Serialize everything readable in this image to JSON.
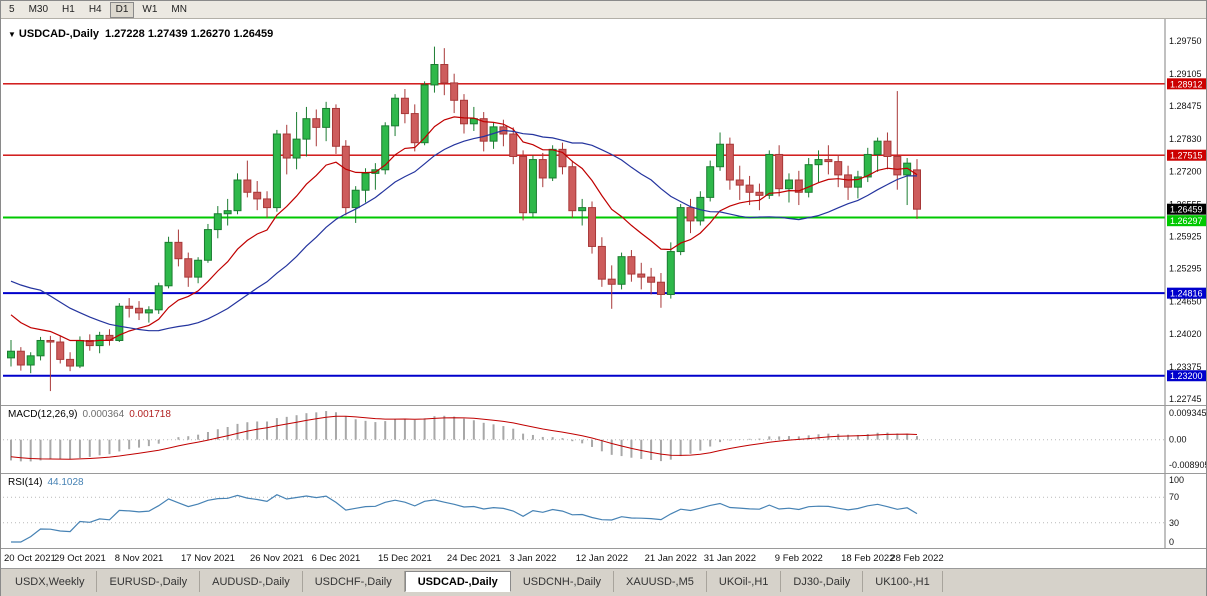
{
  "toolbar": {
    "timeframes": [
      {
        "label": "5",
        "active": false
      },
      {
        "label": "M30",
        "active": false
      },
      {
        "label": "H1",
        "active": false
      },
      {
        "label": "H4",
        "active": false
      },
      {
        "label": "D1",
        "active": true
      },
      {
        "label": "W1",
        "active": false
      },
      {
        "label": "MN",
        "active": false
      }
    ]
  },
  "chart_data": {
    "type": "candlestick+indicators",
    "collapse_icon": "▼",
    "symbol_title": "USDCAD-,Daily",
    "ohlc_display": "1.27228 1.27439 1.26270 1.26459",
    "price_axis_labels": [
      "1.29750",
      "1.29105",
      "1.28475",
      "1.27830",
      "1.27200",
      "1.26555",
      "1.25925",
      "1.25295",
      "1.24650",
      "1.24020",
      "1.23375",
      "1.22745"
    ],
    "price_axis_range": {
      "top": 1.2975,
      "bottom": 1.22745
    },
    "hlines": [
      {
        "price": 1.28912,
        "label": "1.28912",
        "color": "#CC0000",
        "width": 1.4
      },
      {
        "price": 1.27515,
        "label": "1.27515",
        "color": "#CC0000",
        "width": 1.4
      },
      {
        "price": 1.26297,
        "label": "1.26297",
        "color": "#00C800",
        "width": 2
      },
      {
        "price": 1.24816,
        "label": "1.24816",
        "color": "#0000CC",
        "width": 2
      },
      {
        "price": 1.232,
        "label": "1.23200",
        "color": "#0000CC",
        "width": 2
      }
    ],
    "current_price_tag": {
      "price": 1.26459,
      "label": "1.26459",
      "color": "#000000"
    },
    "moving_averages": [
      {
        "name": "fast-ma",
        "type": "ema",
        "period": 12,
        "color": "#C00000"
      },
      {
        "name": "slow-ma",
        "type": "sma",
        "period": 24,
        "color": "#24349E"
      }
    ],
    "ma_seed": [
      1.2656,
      1.2641,
      1.2622,
      1.2603,
      1.2586,
      1.2571,
      1.2556,
      1.2541,
      1.2531,
      1.2519,
      1.2506,
      1.2491,
      1.2476,
      1.2461,
      1.2449,
      1.2436,
      1.2421,
      1.2406,
      1.2391,
      1.2376
    ],
    "candles": [
      [
        1.2355,
        1.239,
        1.2338,
        1.2368
      ],
      [
        1.2368,
        1.2376,
        1.233,
        1.2341
      ],
      [
        1.2341,
        1.2366,
        1.2325,
        1.2359
      ],
      [
        1.2359,
        1.2396,
        1.235,
        1.2389
      ],
      [
        1.2389,
        1.2398,
        1.229,
        1.2386
      ],
      [
        1.2386,
        1.2399,
        1.2344,
        1.2352
      ],
      [
        1.2352,
        1.2366,
        1.2329,
        1.2339
      ],
      [
        1.2339,
        1.2397,
        1.2335,
        1.2389
      ],
      [
        1.2389,
        1.2401,
        1.2369,
        1.2379
      ],
      [
        1.2379,
        1.2406,
        1.2364,
        1.2399
      ],
      [
        1.2399,
        1.2411,
        1.2379,
        1.2389
      ],
      [
        1.2389,
        1.2462,
        1.2386,
        1.2456
      ],
      [
        1.2456,
        1.2472,
        1.2434,
        1.2452
      ],
      [
        1.2452,
        1.2466,
        1.2429,
        1.2443
      ],
      [
        1.2443,
        1.2456,
        1.2424,
        1.2449
      ],
      [
        1.2449,
        1.2502,
        1.2441,
        1.2496
      ],
      [
        1.2496,
        1.2592,
        1.2491,
        1.2581
      ],
      [
        1.2581,
        1.2606,
        1.2534,
        1.2549
      ],
      [
        1.2549,
        1.2561,
        1.2494,
        1.2513
      ],
      [
        1.2513,
        1.2552,
        1.2501,
        1.2546
      ],
      [
        1.2546,
        1.2617,
        1.2541,
        1.2606
      ],
      [
        1.2606,
        1.2652,
        1.2589,
        1.2637
      ],
      [
        1.2637,
        1.2666,
        1.2614,
        1.2643
      ],
      [
        1.2643,
        1.2716,
        1.2636,
        1.2703
      ],
      [
        1.2703,
        1.2741,
        1.2669,
        1.2679
      ],
      [
        1.2679,
        1.2701,
        1.2644,
        1.2666
      ],
      [
        1.2666,
        1.2681,
        1.2629,
        1.2649
      ],
      [
        1.2649,
        1.2801,
        1.2641,
        1.2793
      ],
      [
        1.2793,
        1.2811,
        1.2714,
        1.2746
      ],
      [
        1.2746,
        1.2836,
        1.2724,
        1.2783
      ],
      [
        1.2783,
        1.2846,
        1.2749,
        1.2823
      ],
      [
        1.2823,
        1.2841,
        1.2769,
        1.2806
      ],
      [
        1.2806,
        1.2856,
        1.2779,
        1.2843
      ],
      [
        1.2843,
        1.2851,
        1.2754,
        1.2769
      ],
      [
        1.2769,
        1.2781,
        1.2634,
        1.2649
      ],
      [
        1.2649,
        1.2691,
        1.2619,
        1.2683
      ],
      [
        1.2683,
        1.2726,
        1.2659,
        1.2716
      ],
      [
        1.2716,
        1.2736,
        1.2684,
        1.2723
      ],
      [
        1.2723,
        1.2816,
        1.2714,
        1.2809
      ],
      [
        1.2809,
        1.2871,
        1.2789,
        1.2863
      ],
      [
        1.2863,
        1.2881,
        1.2814,
        1.2833
      ],
      [
        1.2833,
        1.2851,
        1.2759,
        1.2776
      ],
      [
        1.2776,
        1.2896,
        1.2771,
        1.2889
      ],
      [
        1.2889,
        1.2964,
        1.2874,
        1.2929
      ],
      [
        1.2929,
        1.2961,
        1.2869,
        1.2893
      ],
      [
        1.2893,
        1.2911,
        1.2834,
        1.2859
      ],
      [
        1.2859,
        1.2871,
        1.2794,
        1.2813
      ],
      [
        1.2813,
        1.2846,
        1.2799,
        1.2823
      ],
      [
        1.2823,
        1.2836,
        1.2759,
        1.2779
      ],
      [
        1.2779,
        1.2816,
        1.2764,
        1.2807
      ],
      [
        1.2807,
        1.2821,
        1.2769,
        1.2793
      ],
      [
        1.2793,
        1.2806,
        1.2734,
        1.2749
      ],
      [
        1.2749,
        1.2761,
        1.2624,
        1.2639
      ],
      [
        1.2639,
        1.2751,
        1.2631,
        1.2743
      ],
      [
        1.2743,
        1.2756,
        1.2689,
        1.2707
      ],
      [
        1.2707,
        1.2771,
        1.2701,
        1.2763
      ],
      [
        1.2763,
        1.2776,
        1.2714,
        1.2729
      ],
      [
        1.2729,
        1.2741,
        1.2629,
        1.2643
      ],
      [
        1.2643,
        1.2666,
        1.2614,
        1.2649
      ],
      [
        1.2649,
        1.2661,
        1.2559,
        1.2573
      ],
      [
        1.2573,
        1.2591,
        1.2494,
        1.2509
      ],
      [
        1.2509,
        1.2536,
        1.2451,
        1.2499
      ],
      [
        1.2499,
        1.2561,
        1.2489,
        1.2553
      ],
      [
        1.2553,
        1.2566,
        1.2504,
        1.2519
      ],
      [
        1.2519,
        1.2541,
        1.2489,
        1.2513
      ],
      [
        1.2513,
        1.2531,
        1.2479,
        1.2503
      ],
      [
        1.2503,
        1.2521,
        1.2453,
        1.2479
      ],
      [
        1.2479,
        1.2581,
        1.2471,
        1.2563
      ],
      [
        1.2563,
        1.2656,
        1.2556,
        1.2649
      ],
      [
        1.2649,
        1.2666,
        1.2599,
        1.2623
      ],
      [
        1.2623,
        1.2681,
        1.2614,
        1.2669
      ],
      [
        1.2669,
        1.2741,
        1.2661,
        1.2729
      ],
      [
        1.2729,
        1.2796,
        1.2721,
        1.2773
      ],
      [
        1.2773,
        1.2786,
        1.2684,
        1.2703
      ],
      [
        1.2703,
        1.2731,
        1.2664,
        1.2693
      ],
      [
        1.2693,
        1.2711,
        1.2654,
        1.2679
      ],
      [
        1.2679,
        1.2696,
        1.2644,
        1.2673
      ],
      [
        1.2673,
        1.2761,
        1.2666,
        1.2753
      ],
      [
        1.2753,
        1.2771,
        1.2671,
        1.2686
      ],
      [
        1.2686,
        1.2716,
        1.2659,
        1.2703
      ],
      [
        1.2703,
        1.2721,
        1.2654,
        1.2679
      ],
      [
        1.2679,
        1.2746,
        1.2669,
        1.2733
      ],
      [
        1.2733,
        1.2761,
        1.2699,
        1.2743
      ],
      [
        1.2743,
        1.2771,
        1.2714,
        1.2739
      ],
      [
        1.2739,
        1.2753,
        1.2689,
        1.2713
      ],
      [
        1.2713,
        1.2731,
        1.2664,
        1.2689
      ],
      [
        1.2689,
        1.2721,
        1.2667,
        1.2709
      ],
      [
        1.2709,
        1.2766,
        1.2699,
        1.2753
      ],
      [
        1.2753,
        1.2786,
        1.2719,
        1.2779
      ],
      [
        1.2779,
        1.2796,
        1.2724,
        1.2749
      ],
      [
        1.2749,
        1.2877,
        1.2684,
        1.2713
      ],
      [
        1.2713,
        1.2746,
        1.2654,
        1.2736
      ],
      [
        1.27228,
        1.27439,
        1.2627,
        1.26459
      ]
    ],
    "x_axis": {
      "labels": [
        {
          "text": "20 Oct 2021",
          "bar": 0
        },
        {
          "text": "29 Oct 2021",
          "bar": 7
        },
        {
          "text": "8 Nov 2021",
          "bar": 13
        },
        {
          "text": "17 Nov 2021",
          "bar": 20
        },
        {
          "text": "26 Nov 2021",
          "bar": 27
        },
        {
          "text": "6 Dec 2021",
          "bar": 33
        },
        {
          "text": "15 Dec 2021",
          "bar": 40
        },
        {
          "text": "24 Dec 2021",
          "bar": 47
        },
        {
          "text": "3 Jan 2022",
          "bar": 53
        },
        {
          "text": "12 Jan 2022",
          "bar": 60
        },
        {
          "text": "21 Jan 2022",
          "bar": 67
        },
        {
          "text": "31 Jan 2022",
          "bar": 73
        },
        {
          "text": "9 Feb 2022",
          "bar": 80
        },
        {
          "text": "18 Feb 2022",
          "bar": 87
        },
        {
          "text": "28 Feb 2022",
          "bar": 92
        }
      ]
    },
    "macd": {
      "title": "MACD(12,26,9)",
      "value_main": "0.000364",
      "value_signal": "0.001718",
      "params": {
        "fast": 12,
        "slow": 26,
        "signal": 9
      },
      "axis_labels": {
        "top": "0.009345",
        "zero": "0.00",
        "bottom": "-0.008905"
      },
      "range": {
        "max": 0.009345,
        "min": -0.008905
      },
      "colors": {
        "histogram": "#A8A8A8",
        "signal": "#C00000"
      }
    },
    "rsi": {
      "title": "RSI(14)",
      "value_display": "44.1028",
      "period": 14,
      "levels": [
        70,
        30
      ],
      "axis_labels": [
        "100",
        "70",
        "30",
        "0"
      ],
      "range": {
        "max": 100,
        "min": 0
      },
      "color": "#4682B4"
    },
    "colors": {
      "up_candle": "#2EB84A",
      "up_candle_border": "#1B7C31",
      "down_candle": "#CD5C5C",
      "down_candle_border": "#A83838",
      "background": "#FFFFFF",
      "axis_separator": "#808080",
      "dotted_level": "#B9B9B9",
      "axis_text": "#111111"
    }
  },
  "tabs": {
    "items": [
      {
        "label": "USDX,Weekly",
        "active": false
      },
      {
        "label": "EURUSD-,Daily",
        "active": false
      },
      {
        "label": "AUDUSD-,Daily",
        "active": false
      },
      {
        "label": "USDCHF-,Daily",
        "active": false
      },
      {
        "label": "USDCAD-,Daily",
        "active": true
      },
      {
        "label": "USDCNH-,Daily",
        "active": false
      },
      {
        "label": "XAUUSD-,M5",
        "active": false
      },
      {
        "label": "UKOil-,H1",
        "active": false
      },
      {
        "label": "DJ30-,Daily",
        "active": false
      },
      {
        "label": "UK100-,H1",
        "active": false
      }
    ]
  }
}
